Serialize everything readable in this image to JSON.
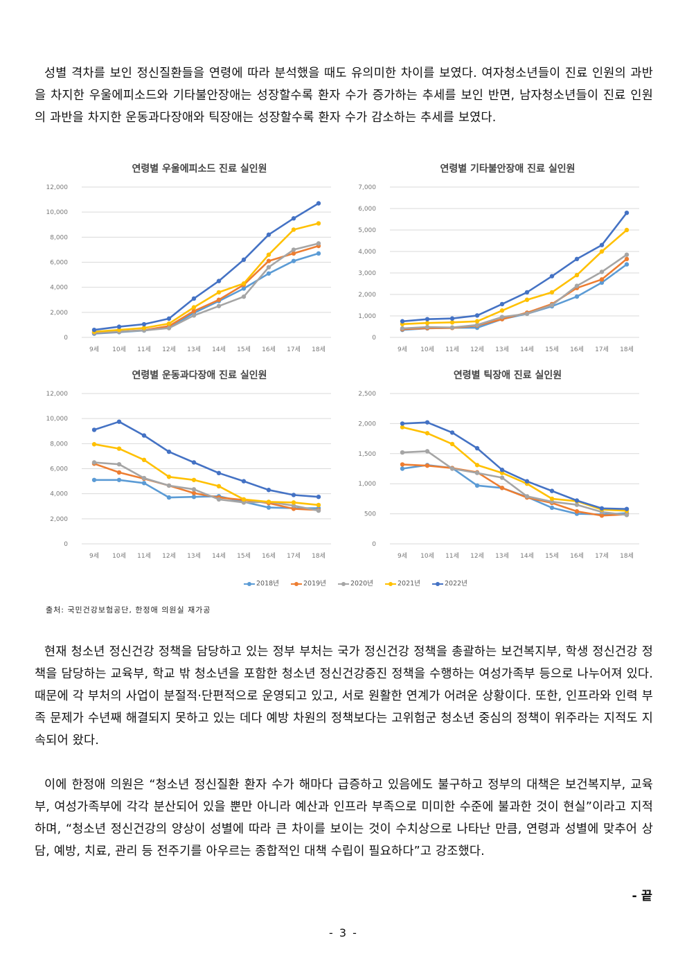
{
  "paragraphs": {
    "p1": "성별 격차를 보인 정신질환들을 연령에 따라 분석했을 때도 유의미한 차이를 보였다. 여자청소년들이 진료 인원의 과반을 차지한 우울에피소드와 기타불안장애는 성장할수록 환자 수가 증가하는 추세를 보인 반면, 남자청소년들이 진료 인원의 과반을 차지한 운동과다장애와 틱장애는 성장할수록 환자 수가 감소하는 추세를 보였다.",
    "p2": "현재 청소년 정신건강 정책을 담당하고 있는 정부 부처는 국가 정신건강 정책을 총괄하는 보건복지부, 학생 정신건강 정책을 담당하는 교육부, 학교 밖 청소년을 포함한 청소년 정신건강증진 정책을 수행하는 여성가족부 등으로 나누어져 있다. 때문에 각 부처의 사업이 분절적·단편적으로 운영되고 있고, 서로 원활한 연계가 어려운 상황이다. 또한, 인프라와 인력 부족 문제가 수년째 해결되지 못하고 있는 데다 예방 차원의 정책보다는 고위험군 청소년 중심의 정책이 위주라는 지적도 지속되어 왔다.",
    "p3": "이에 한정애 의원은 “청소년 정신질환 환자 수가 해마다 급증하고 있음에도 불구하고 정부의 대책은 보건복지부, 교육부, 여성가족부에 각각 분산되어 있을 뿐만 아니라 예산과 인프라 부족으로 미미한 수준에 불과한 것이 현실”이라고 지적하며, “청소년 정신건강의 양상이 성별에 따라 큰 차이를 보이는 것이 수치상으로 나타난 만큼, 연령과 성별에 맞추어 상담, 예방, 치료, 관리 등 전주기를 아우르는 종합적인 대책 수립이 필요하다”고 강조했다."
  },
  "source_note": "출처: 국민건강보험공단, 한정애 의원실 재가공",
  "end_mark": "- 끝",
  "page_number": "- 3 -",
  "colors": {
    "2018년": "#5b9bd5",
    "2019년": "#ed7d31",
    "2020년": "#a5a5a5",
    "2021년": "#ffc000",
    "2022년": "#4472c4"
  },
  "legend": [
    "2018년",
    "2019년",
    "2020년",
    "2021년",
    "2022년"
  ],
  "chart_data": [
    {
      "type": "line",
      "title": "연령별 우울에피소드 진료 실인원",
      "categories": [
        "9세",
        "10세",
        "11세",
        "12세",
        "13세",
        "14세",
        "15세",
        "16세",
        "17세",
        "18세"
      ],
      "ylim": [
        0,
        12000
      ],
      "yticks": [
        "0",
        "2,000",
        "4,000",
        "6,000",
        "8,000",
        "10,000",
        "12,000"
      ],
      "series": [
        {
          "name": "2018년",
          "values": [
            300,
            420,
            550,
            800,
            1950,
            2900,
            3900,
            5100,
            6100,
            6700
          ]
        },
        {
          "name": "2019년",
          "values": [
            360,
            460,
            580,
            900,
            2100,
            3000,
            4200,
            6100,
            6700,
            7300
          ]
        },
        {
          "name": "2020년",
          "values": [
            380,
            470,
            560,
            740,
            1750,
            2500,
            3250,
            5600,
            7000,
            7500
          ]
        },
        {
          "name": "2021년",
          "values": [
            450,
            600,
            750,
            1100,
            2400,
            3600,
            4300,
            6600,
            8600,
            9100
          ]
        },
        {
          "name": "2022년",
          "values": [
            600,
            850,
            1050,
            1500,
            3100,
            4500,
            6200,
            8200,
            9500,
            10700
          ]
        }
      ]
    },
    {
      "type": "line",
      "title": "연령별 기타불안장애 진료 실인원",
      "categories": [
        "9세",
        "10세",
        "11세",
        "12세",
        "13세",
        "14세",
        "15세",
        "16세",
        "17세",
        "18세"
      ],
      "ylim": [
        0,
        7000
      ],
      "yticks": [
        "0",
        "1,000",
        "2,000",
        "3,000",
        "4,000",
        "5,000",
        "6,000",
        "7,000"
      ],
      "series": [
        {
          "name": "2018년",
          "values": [
            350,
            420,
            450,
            450,
            850,
            1100,
            1450,
            1900,
            2550,
            3400
          ]
        },
        {
          "name": "2019년",
          "values": [
            380,
            430,
            440,
            550,
            850,
            1150,
            1550,
            2300,
            2700,
            3650
          ]
        },
        {
          "name": "2020년",
          "values": [
            420,
            480,
            460,
            580,
            950,
            1100,
            1500,
            2400,
            3050,
            3850
          ]
        },
        {
          "name": "2021년",
          "values": [
            620,
            670,
            700,
            750,
            1250,
            1750,
            2100,
            2900,
            4000,
            5000
          ]
        },
        {
          "name": "2022년",
          "values": [
            750,
            850,
            880,
            1020,
            1550,
            2100,
            2850,
            3650,
            4300,
            5800
          ]
        }
      ]
    },
    {
      "type": "line",
      "title": "연령별 운동과다장애 진료 실인원",
      "categories": [
        "9세",
        "10세",
        "11세",
        "12세",
        "13세",
        "14세",
        "15세",
        "16세",
        "17세",
        "18세"
      ],
      "ylim": [
        0,
        12000
      ],
      "yticks": [
        "0",
        "2,000",
        "4,000",
        "6,000",
        "8,000",
        "10,000",
        "12,000"
      ],
      "series": [
        {
          "name": "2018년",
          "values": [
            5100,
            5100,
            4850,
            3700,
            3750,
            3800,
            3350,
            2900,
            2850,
            2850
          ]
        },
        {
          "name": "2019년",
          "values": [
            6400,
            5700,
            5200,
            4650,
            4050,
            3700,
            3500,
            3250,
            2800,
            2700
          ]
        },
        {
          "name": "2020년",
          "values": [
            6500,
            6350,
            5250,
            4650,
            4350,
            3550,
            3300,
            3350,
            3050,
            2650
          ]
        },
        {
          "name": "2021년",
          "values": [
            7950,
            7600,
            6700,
            5350,
            5100,
            4600,
            3550,
            3350,
            3300,
            3100
          ]
        },
        {
          "name": "2022년",
          "values": [
            9100,
            9750,
            8650,
            7350,
            6500,
            5650,
            5000,
            4300,
            3900,
            3750
          ]
        }
      ]
    },
    {
      "type": "line",
      "title": "연령별 틱장애 진료 실인원",
      "categories": [
        "9세",
        "10세",
        "11세",
        "12세",
        "13세",
        "14세",
        "15세",
        "16세",
        "17세",
        "18세"
      ],
      "ylim": [
        0,
        2500
      ],
      "yticks": [
        "0",
        "500",
        "1,000",
        "1,500",
        "2,000",
        "2,500"
      ],
      "series": [
        {
          "name": "2018년",
          "values": [
            1250,
            1310,
            1260,
            970,
            930,
            780,
            600,
            500,
            490,
            510
          ]
        },
        {
          "name": "2019년",
          "values": [
            1320,
            1300,
            1260,
            1190,
            930,
            770,
            680,
            540,
            470,
            490
          ]
        },
        {
          "name": "2020년",
          "values": [
            1520,
            1540,
            1250,
            1180,
            1100,
            790,
            700,
            650,
            530,
            480
          ]
        },
        {
          "name": "2021년",
          "values": [
            1940,
            1840,
            1660,
            1310,
            1180,
            1000,
            750,
            710,
            570,
            550
          ]
        },
        {
          "name": "2022년",
          "values": [
            2000,
            2020,
            1850,
            1590,
            1230,
            1040,
            880,
            720,
            590,
            580
          ]
        }
      ]
    }
  ]
}
